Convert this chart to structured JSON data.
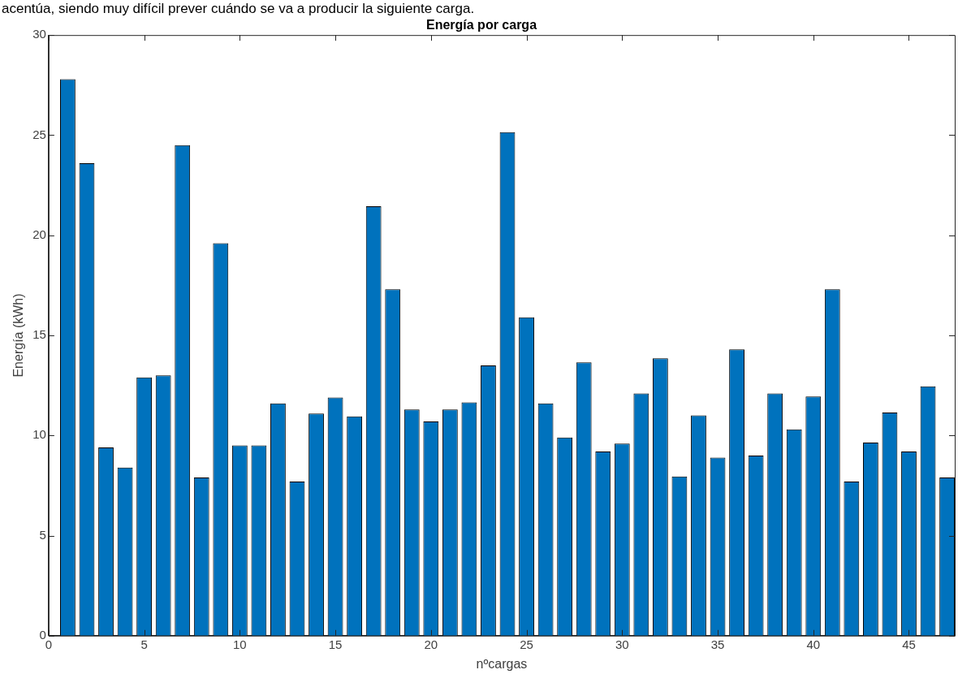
{
  "chart_data": {
    "type": "bar",
    "title": "Energía por carga",
    "xlabel": "nºcargas",
    "ylabel": "Energía (kWh)",
    "annotations": [
      "acentúa, siendo muy difícil prever cuándo se va a producir la siguiente carga."
    ],
    "x": [
      1,
      2,
      3,
      4,
      5,
      6,
      7,
      8,
      9,
      10,
      11,
      12,
      13,
      14,
      15,
      16,
      17,
      18,
      19,
      20,
      21,
      22,
      23,
      24,
      25,
      26,
      27,
      28,
      29,
      30,
      31,
      32,
      33,
      34,
      35,
      36,
      37,
      38,
      39,
      40,
      41,
      42,
      43,
      44,
      45,
      46,
      47
    ],
    "values": [
      27.8,
      23.6,
      9.4,
      8.4,
      12.9,
      13.0,
      24.5,
      7.9,
      19.6,
      9.5,
      9.5,
      11.6,
      7.7,
      11.1,
      11.9,
      10.95,
      21.45,
      17.3,
      11.3,
      10.7,
      11.3,
      11.65,
      13.5,
      25.15,
      15.9,
      11.6,
      9.9,
      13.65,
      9.2,
      9.6,
      12.1,
      13.85,
      7.95,
      11.0,
      8.9,
      14.3,
      9.0,
      12.1,
      10.3,
      11.95,
      17.3,
      7.7,
      9.65,
      11.15,
      9.2,
      12.45,
      7.9
    ],
    "color": "#0072bd",
    "xlim": [
      0,
      47.4
    ],
    "xticks": [
      0,
      5,
      10,
      15,
      20,
      25,
      30,
      35,
      40,
      45
    ],
    "ylim": [
      0,
      30
    ],
    "yticks": [
      0,
      5,
      10,
      15,
      20,
      25,
      30
    ],
    "grid": false,
    "legend": false
  }
}
